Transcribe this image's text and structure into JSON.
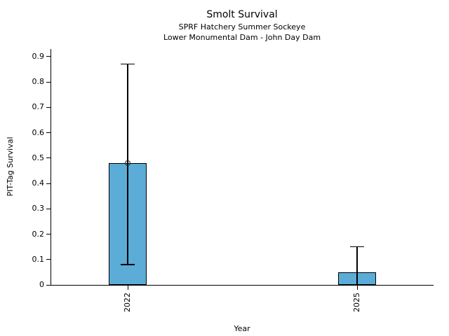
{
  "background_color": "#FFFFFF",
  "chart_data": {
    "type": "bar",
    "title": "Smolt Survival",
    "subtitle_lines": [
      "SPRF Hatchery Summer Sockeye",
      "Lower Monumental Dam - John Day Dam"
    ],
    "xlabel": "Year",
    "ylabel": "PIT-Tag Survival",
    "categories": [
      "2022",
      "2025"
    ],
    "series": [
      {
        "name": "PIT-Tag Survival",
        "values": [
          0.48,
          0.05
        ],
        "error_low": [
          0.08,
          0.0
        ],
        "error_high": [
          0.87,
          0.15
        ],
        "point_marker": [
          true,
          false
        ]
      }
    ],
    "yticks": [
      0,
      0.1,
      0.2,
      0.3,
      0.4,
      0.5,
      0.6,
      0.7,
      0.8,
      0.9
    ],
    "ytick_labels": [
      "0",
      "0.1",
      "0.2",
      "0.3",
      "0.4",
      "0.5",
      "0.6",
      "0.7",
      "0.8",
      "0.9"
    ],
    "ylim": [
      0,
      0.93
    ],
    "grid": false,
    "legend": false,
    "bar_color": "#5BACD6",
    "bar_edge_color": "#000000",
    "error_bar_color": "#000000",
    "marker_color": "#2A2A2A",
    "text_color": "#000000"
  }
}
